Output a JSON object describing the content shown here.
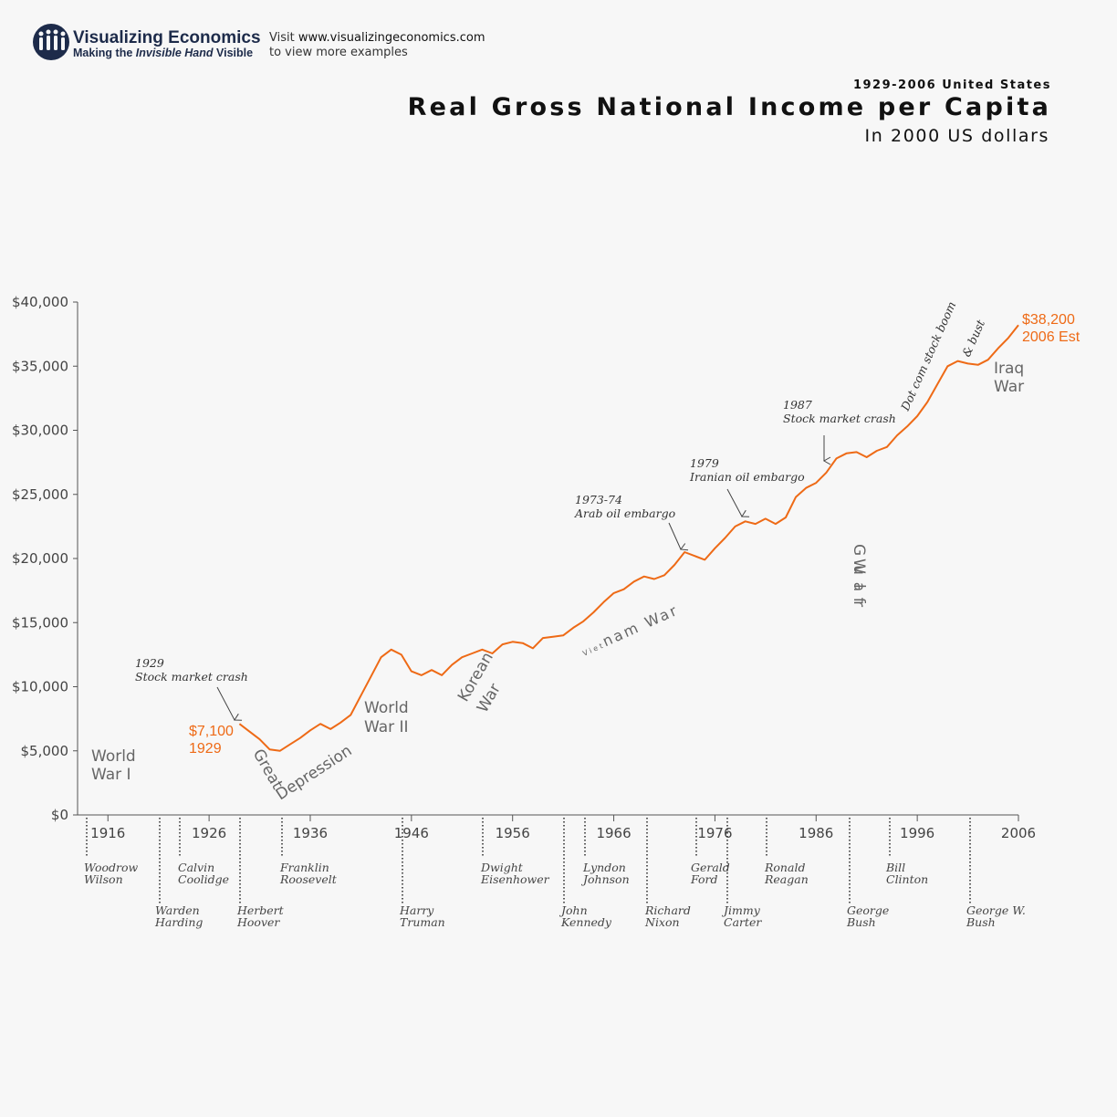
{
  "branding": {
    "name": "Visualizing Economics",
    "tagline_pre": "Making the ",
    "tagline_em": "Invisible Hand",
    "tagline_post": " Visible",
    "visit_pre": "Visit ",
    "visit_url": "www.visualizingeconomics.com",
    "visit_line2": "to view more examples",
    "logo_icon": "people-group-icon"
  },
  "colors": {
    "series": "#ee6a16",
    "navy": "#1d2b4a",
    "axis": "#555555"
  },
  "chart_data": {
    "type": "line",
    "supertitle": "1929-2006 United States",
    "title": "Real Gross National Income per Capita",
    "subtitle": "In 2000 US dollars",
    "xlim": [
      1913,
      2006
    ],
    "ylim": [
      0,
      40000
    ],
    "grid": false,
    "y_ticks": [
      0,
      5000,
      10000,
      15000,
      20000,
      25000,
      30000,
      35000,
      40000
    ],
    "y_tick_labels": [
      "$0",
      "$5,000",
      "$10,000",
      "$15,000",
      "$20,000",
      "$25,000",
      "$30,000",
      "$35,000",
      "$40,000"
    ],
    "x_ticks": [
      1916,
      1926,
      1936,
      1946,
      1956,
      1966,
      1976,
      1986,
      1996,
      2006
    ],
    "x_tick_labels": [
      "1916",
      "1926",
      "1936",
      "1946",
      "1956",
      "1966",
      "1976",
      "1986",
      "1996",
      "2006"
    ],
    "series": [
      {
        "x": [
          1929,
          1930,
          1931,
          1932,
          1933,
          1934,
          1935,
          1936,
          1937,
          1938,
          1939,
          1940,
          1941,
          1942,
          1943,
          1944,
          1945,
          1946,
          1947,
          1948,
          1949,
          1950,
          1951,
          1952,
          1953,
          1954,
          1955,
          1956,
          1957,
          1958,
          1959,
          1960,
          1961,
          1962,
          1963,
          1964,
          1965,
          1966,
          1967,
          1968,
          1969,
          1970,
          1971,
          1972,
          1973,
          1974,
          1975,
          1976,
          1977,
          1978,
          1979,
          1980,
          1981,
          1982,
          1983,
          1984,
          1985,
          1986,
          1987,
          1988,
          1989,
          1990,
          1991,
          1992,
          1993,
          1994,
          1995,
          1996,
          1997,
          1998,
          1999,
          2000,
          2001,
          2002,
          2003,
          2004,
          2005,
          2006
        ],
        "y": [
          7100,
          6500,
          5900,
          5100,
          5000,
          5500,
          6000,
          6600,
          7100,
          6700,
          7200,
          7800,
          9300,
          10800,
          12300,
          12900,
          12500,
          11200,
          10900,
          11300,
          10900,
          11700,
          12300,
          12600,
          12900,
          12600,
          13300,
          13500,
          13400,
          13000,
          13800,
          13900,
          14000,
          14600,
          15100,
          15800,
          16600,
          17300,
          17600,
          18200,
          18600,
          18400,
          18700,
          19500,
          20500,
          20200,
          19900,
          20800,
          21600,
          22500,
          22900,
          22700,
          23100,
          22700,
          23200,
          24800,
          25500,
          25900,
          26700,
          27800,
          28200,
          28300,
          27900,
          28400,
          28700,
          29600,
          30300,
          31100,
          32200,
          33600,
          35000,
          35400,
          35200,
          35100,
          35500,
          36400,
          37200,
          38200
        ]
      }
    ],
    "highlights": [
      {
        "value": "$7,100",
        "label": "1929"
      },
      {
        "value": "$38,200",
        "label": "2006 Est"
      }
    ],
    "events": [
      {
        "line1": "1929",
        "line2": "Stock market crash"
      },
      {
        "line1": "1973-74",
        "line2": "Arab oil embargo"
      },
      {
        "line1": "1979",
        "line2": "Iranian oil embargo"
      },
      {
        "line1": "1987",
        "line2": "Stock market crash"
      }
    ],
    "wars": {
      "ww1_l1": "World",
      "ww1_l2": "War I",
      "gd_1": "Great",
      "gd_2": "Depression",
      "ww2_l1": "World",
      "ww2_l2": "War II",
      "korea_l1": "Korean",
      "korea_l2": "War",
      "vietnam_small": "Viet",
      "vietnam": "nam War",
      "gulf_1": "Gulf",
      "gulf_2": "War",
      "iraq_l1": "Iraq",
      "iraq_l2": "War",
      "dotcom_1": "Dot com stock boom",
      "dotcom_2": "& bust"
    },
    "presidents": [
      {
        "l1": "Woodrow",
        "l2": "Wilson"
      },
      {
        "l1": "Warden",
        "l2": "Harding"
      },
      {
        "l1": "Calvin",
        "l2": "Coolidge"
      },
      {
        "l1": "Herbert",
        "l2": "Hoover"
      },
      {
        "l1": "Franklin",
        "l2": "Roosevelt"
      },
      {
        "l1": "Harry",
        "l2": "Truman"
      },
      {
        "l1": "Dwight",
        "l2": "Eisenhower"
      },
      {
        "l1": "John",
        "l2": "Kennedy"
      },
      {
        "l1": "Lyndon",
        "l2": "Johnson"
      },
      {
        "l1": "Richard",
        "l2": "Nixon"
      },
      {
        "l1": "Gerald",
        "l2": "Ford"
      },
      {
        "l1": "Jimmy",
        "l2": "Carter"
      },
      {
        "l1": "Ronald",
        "l2": "Reagan"
      },
      {
        "l1": "George",
        "l2": "Bush"
      },
      {
        "l1": "Bill",
        "l2": "Clinton"
      },
      {
        "l1": "George W.",
        "l2": "Bush"
      }
    ]
  }
}
